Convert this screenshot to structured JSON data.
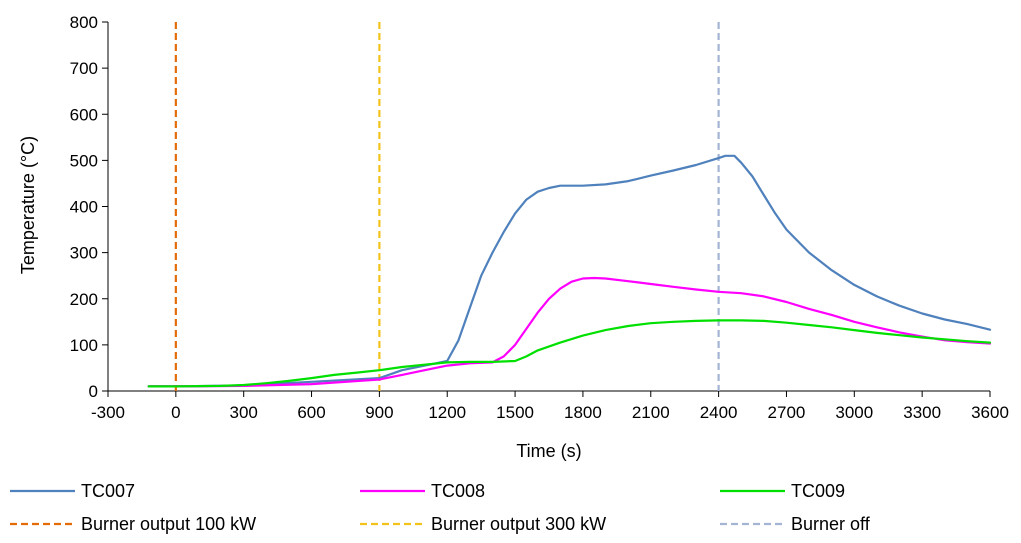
{
  "chart_data": {
    "type": "line",
    "xlabel": "Time (s)",
    "ylabel": "Temperature (°C)",
    "xlim": [
      -300,
      3600
    ],
    "ylim": [
      0,
      800
    ],
    "x_ticks": [
      "-300",
      "0",
      "300",
      "600",
      "900",
      "1200",
      "1500",
      "1800",
      "2100",
      "2400",
      "2700",
      "3000",
      "3300",
      "3600"
    ],
    "y_ticks": [
      "0",
      "100",
      "200",
      "300",
      "400",
      "500",
      "600",
      "700",
      "800"
    ],
    "grid": false,
    "legend_position": "bottom",
    "series": [
      {
        "name": "TC007",
        "color": "#4f81bd",
        "points": [
          [
            -120,
            10
          ],
          [
            0,
            10
          ],
          [
            300,
            12
          ],
          [
            600,
            20
          ],
          [
            900,
            28
          ],
          [
            1000,
            45
          ],
          [
            1150,
            60
          ],
          [
            1200,
            65
          ],
          [
            1250,
            110
          ],
          [
            1300,
            180
          ],
          [
            1350,
            250
          ],
          [
            1400,
            300
          ],
          [
            1450,
            345
          ],
          [
            1500,
            385
          ],
          [
            1550,
            415
          ],
          [
            1600,
            432
          ],
          [
            1650,
            440
          ],
          [
            1700,
            445
          ],
          [
            1800,
            445
          ],
          [
            1900,
            448
          ],
          [
            2000,
            455
          ],
          [
            2100,
            467
          ],
          [
            2200,
            478
          ],
          [
            2300,
            490
          ],
          [
            2400,
            505
          ],
          [
            2430,
            510
          ],
          [
            2470,
            510
          ],
          [
            2500,
            495
          ],
          [
            2550,
            465
          ],
          [
            2600,
            425
          ],
          [
            2650,
            385
          ],
          [
            2700,
            350
          ],
          [
            2800,
            300
          ],
          [
            2900,
            262
          ],
          [
            3000,
            230
          ],
          [
            3100,
            205
          ],
          [
            3200,
            185
          ],
          [
            3300,
            168
          ],
          [
            3400,
            155
          ],
          [
            3500,
            145
          ],
          [
            3600,
            133
          ]
        ]
      },
      {
        "name": "TC008",
        "color": "#ff00ff",
        "points": [
          [
            -120,
            10
          ],
          [
            0,
            10
          ],
          [
            300,
            11
          ],
          [
            600,
            15
          ],
          [
            900,
            25
          ],
          [
            1000,
            35
          ],
          [
            1100,
            45
          ],
          [
            1200,
            55
          ],
          [
            1300,
            60
          ],
          [
            1400,
            62
          ],
          [
            1450,
            75
          ],
          [
            1500,
            100
          ],
          [
            1550,
            135
          ],
          [
            1600,
            170
          ],
          [
            1650,
            200
          ],
          [
            1700,
            222
          ],
          [
            1750,
            237
          ],
          [
            1800,
            244
          ],
          [
            1850,
            245
          ],
          [
            1900,
            244
          ],
          [
            2000,
            238
          ],
          [
            2100,
            232
          ],
          [
            2200,
            226
          ],
          [
            2300,
            220
          ],
          [
            2400,
            215
          ],
          [
            2500,
            212
          ],
          [
            2600,
            205
          ],
          [
            2700,
            193
          ],
          [
            2800,
            178
          ],
          [
            2900,
            165
          ],
          [
            3000,
            150
          ],
          [
            3100,
            138
          ],
          [
            3200,
            127
          ],
          [
            3300,
            118
          ],
          [
            3400,
            110
          ],
          [
            3500,
            106
          ],
          [
            3600,
            103
          ]
        ]
      },
      {
        "name": "TC009",
        "color": "#00e000",
        "points": [
          [
            -120,
            10
          ],
          [
            0,
            10
          ],
          [
            200,
            11
          ],
          [
            300,
            13
          ],
          [
            400,
            17
          ],
          [
            500,
            22
          ],
          [
            600,
            28
          ],
          [
            700,
            35
          ],
          [
            800,
            40
          ],
          [
            900,
            45
          ],
          [
            1000,
            52
          ],
          [
            1100,
            57
          ],
          [
            1200,
            62
          ],
          [
            1300,
            63
          ],
          [
            1400,
            63
          ],
          [
            1500,
            65
          ],
          [
            1550,
            75
          ],
          [
            1600,
            88
          ],
          [
            1700,
            105
          ],
          [
            1800,
            120
          ],
          [
            1900,
            132
          ],
          [
            2000,
            141
          ],
          [
            2100,
            147
          ],
          [
            2200,
            150
          ],
          [
            2300,
            152
          ],
          [
            2400,
            153
          ],
          [
            2500,
            153
          ],
          [
            2600,
            152
          ],
          [
            2700,
            148
          ],
          [
            2800,
            143
          ],
          [
            2900,
            138
          ],
          [
            3000,
            132
          ],
          [
            3100,
            126
          ],
          [
            3200,
            121
          ],
          [
            3300,
            116
          ],
          [
            3400,
            112
          ],
          [
            3500,
            108
          ],
          [
            3600,
            105
          ]
        ]
      }
    ],
    "vertical_lines": [
      {
        "name": "Burner output 100 kW",
        "x": 0,
        "color": "#e36c09"
      },
      {
        "name": "Burner output 300 kW",
        "x": 900,
        "color": "#f2c31b"
      },
      {
        "name": "Burner off",
        "x": 2400,
        "color": "#a3b4d4"
      }
    ]
  }
}
